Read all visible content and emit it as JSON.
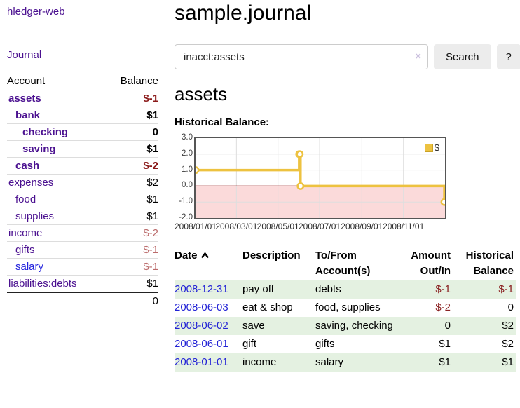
{
  "app": {
    "brand": "hledger-web",
    "nav_journal": "Journal"
  },
  "colors": {
    "accent_purple": "#4b1190",
    "link_blue": "#2323d6",
    "negative_dark_red": "#8b1a1a",
    "negative_light_red": "#bb6b6b",
    "row_stripe_green": "#e4f1e1",
    "series_gold": "#EDC240",
    "zero_line_red": "#8b0000",
    "negative_region_pink": "#fbdada",
    "button_gray": "#ececec"
  },
  "sidebar": {
    "columns": {
      "account": "Account",
      "balance": "Balance"
    },
    "rows": [
      {
        "account": "assets",
        "balance": "$-1",
        "depth": 1,
        "bold": true,
        "balance_style": "neg-bold",
        "link": "purple"
      },
      {
        "account": "bank",
        "balance": "$1",
        "depth": 2,
        "bold": true,
        "balance_style": "pos",
        "link": "purple"
      },
      {
        "account": "checking",
        "balance": "0",
        "depth": 3,
        "bold": true,
        "balance_style": "pos",
        "link": "purple"
      },
      {
        "account": "saving",
        "balance": "$1",
        "depth": 3,
        "bold": true,
        "balance_style": "pos",
        "link": "purple"
      },
      {
        "account": "cash",
        "balance": "$-2",
        "depth": 2,
        "bold": true,
        "balance_style": "neg-bold",
        "link": "purple"
      },
      {
        "account": "expenses",
        "balance": "$2",
        "depth": 1,
        "bold": false,
        "balance_style": "pos",
        "link": "purple"
      },
      {
        "account": "food",
        "balance": "$1",
        "depth": 2,
        "bold": false,
        "balance_style": "pos",
        "link": "purple"
      },
      {
        "account": "supplies",
        "balance": "$1",
        "depth": 2,
        "bold": false,
        "balance_style": "pos",
        "link": "purple"
      },
      {
        "account": "income",
        "balance": "$-2",
        "depth": 1,
        "bold": false,
        "balance_style": "neg-light",
        "link": "purple"
      },
      {
        "account": "gifts",
        "balance": "$-1",
        "depth": 2,
        "bold": false,
        "balance_style": "neg-light",
        "link": "purple"
      },
      {
        "account": "salary",
        "balance": "$-1",
        "depth": 2,
        "bold": false,
        "balance_style": "neg-light",
        "link": "blue"
      },
      {
        "account": "liabilities:debts",
        "balance": "$1",
        "depth": 1,
        "bold": false,
        "balance_style": "pos",
        "link": "purple"
      }
    ],
    "total": "0"
  },
  "main": {
    "title": "sample.journal",
    "search": {
      "value": "inacct:assets",
      "clear_icon": "×",
      "button_label": "Search",
      "help_label": "?"
    },
    "account_heading": "assets",
    "chart_label": "Historical Balance:"
  },
  "chart_data": {
    "type": "line",
    "step": true,
    "title": "Historical Balance:",
    "grid": true,
    "legend_position": "top-right",
    "legend": [
      {
        "label": "$",
        "color": "#EDC240"
      }
    ],
    "xlim": [
      "2008-01-01",
      "2009-01-01"
    ],
    "ylim": [
      -2,
      3
    ],
    "x_ticks": [
      {
        "d": "2008-01-01",
        "label": "2008/01/01"
      },
      {
        "d": "2008-03-01",
        "label": "2008/03/01"
      },
      {
        "d": "2008-05-01",
        "label": "2008/05/01"
      },
      {
        "d": "2008-07-01",
        "label": "2008/07/01"
      },
      {
        "d": "2008-09-01",
        "label": "2008/09/01"
      },
      {
        "d": "2008-11-01",
        "label": "2008/11/01"
      }
    ],
    "y_ticks": [
      {
        "v": 3,
        "label": "3.0"
      },
      {
        "v": 2,
        "label": "2.0"
      },
      {
        "v": 1,
        "label": "1.0"
      },
      {
        "v": 0,
        "label": "0.0"
      },
      {
        "v": -1,
        "label": "-1.0"
      },
      {
        "v": -2,
        "label": "-2.0"
      }
    ],
    "series": [
      {
        "name": "$",
        "color": "#EDC240",
        "points": [
          [
            "2008-01-01",
            1
          ],
          [
            "2008-06-01",
            2
          ],
          [
            "2008-06-02",
            2
          ],
          [
            "2008-06-03",
            0
          ],
          [
            "2008-12-31",
            -1
          ]
        ]
      }
    ],
    "zero_line_color": "#8b0000",
    "negative_region_fill": "#fbdada"
  },
  "register": {
    "headers": {
      "date": "Date",
      "description": "Description",
      "accounts": "To/From Account(s)",
      "amount": "Amount Out/In",
      "balance": "Historical Balance"
    },
    "sort": {
      "column": "date",
      "direction": "ascending"
    },
    "rows": [
      {
        "date": "2008-12-31",
        "description": "pay off",
        "accounts": "debts",
        "amount": "$-1",
        "balance": "$-1",
        "amount_neg": true,
        "balance_neg": true
      },
      {
        "date": "2008-06-03",
        "description": "eat & shop",
        "accounts": "food, supplies",
        "amount": "$-2",
        "balance": "0",
        "amount_neg": true,
        "balance_neg": false
      },
      {
        "date": "2008-06-02",
        "description": "save",
        "accounts": "saving, checking",
        "amount": "0",
        "balance": "$2",
        "amount_neg": false,
        "balance_neg": false
      },
      {
        "date": "2008-06-01",
        "description": "gift",
        "accounts": "gifts",
        "amount": "$1",
        "balance": "$2",
        "amount_neg": false,
        "balance_neg": false
      },
      {
        "date": "2008-01-01",
        "description": "income",
        "accounts": "salary",
        "amount": "$1",
        "balance": "$1",
        "amount_neg": false,
        "balance_neg": false
      }
    ]
  }
}
